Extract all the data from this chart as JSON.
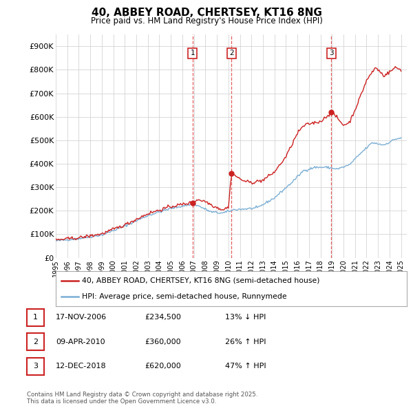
{
  "title": "40, ABBEY ROAD, CHERTSEY, KT16 8NG",
  "subtitle": "Price paid vs. HM Land Registry's House Price Index (HPI)",
  "background_color": "#ffffff",
  "plot_bg_color": "#ffffff",
  "grid_color": "#cccccc",
  "hpi_color": "#7bafd4",
  "price_color": "#cc2222",
  "ylim": [
    0,
    950000
  ],
  "yticks": [
    0,
    100000,
    200000,
    300000,
    400000,
    500000,
    600000,
    700000,
    800000,
    900000
  ],
  "ytick_labels": [
    "£0",
    "£100K",
    "£200K",
    "£300K",
    "£400K",
    "£500K",
    "£600K",
    "£700K",
    "£800K",
    "£900K"
  ],
  "transactions": [
    {
      "date": 2006.88,
      "price": 234500,
      "label": "1"
    },
    {
      "date": 2010.27,
      "price": 360000,
      "label": "2"
    },
    {
      "date": 2018.95,
      "price": 620000,
      "label": "3"
    }
  ],
  "vlines": [
    2006.88,
    2010.27,
    2018.95
  ],
  "legend_entries": [
    "40, ABBEY ROAD, CHERTSEY, KT16 8NG (semi-detached house)",
    "HPI: Average price, semi-detached house, Runnymede"
  ],
  "table_rows": [
    {
      "num": "1",
      "date": "17-NOV-2006",
      "price": "£234,500",
      "hpi": "13% ↓ HPI"
    },
    {
      "num": "2",
      "date": "09-APR-2010",
      "price": "£360,000",
      "hpi": "26% ↑ HPI"
    },
    {
      "num": "3",
      "date": "12-DEC-2018",
      "price": "£620,000",
      "hpi": "47% ↑ HPI"
    }
  ],
  "footer": "Contains HM Land Registry data © Crown copyright and database right 2025.\nThis data is licensed under the Open Government Licence v3.0.",
  "xtick_years": [
    1995,
    1996,
    1997,
    1998,
    1999,
    2000,
    2001,
    2002,
    2003,
    2004,
    2005,
    2006,
    2007,
    2008,
    2009,
    2010,
    2011,
    2012,
    2013,
    2014,
    2015,
    2016,
    2017,
    2018,
    2019,
    2020,
    2021,
    2022,
    2023,
    2024,
    2025
  ]
}
